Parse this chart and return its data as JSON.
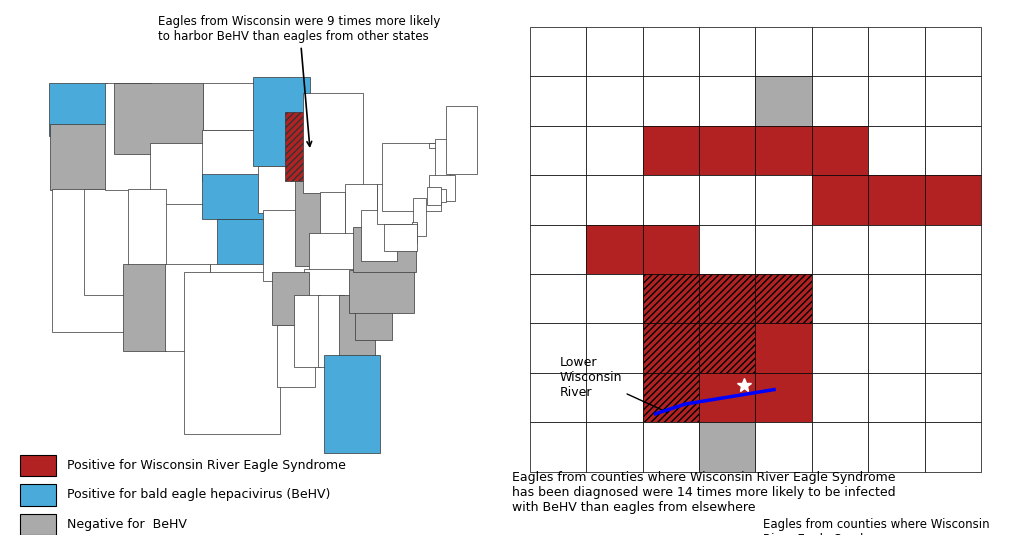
{
  "title_left": "Eagles from Wisconsin were 9 times more likely\nto harbor BeHV than eagles from other states",
  "title_right_top": "Lower\nWisconsin\nRiver",
  "title_right_bottom": "Eagles from counties where Wisconsin River Eagle Syndrome\nhas been diagnosed were 14 times more likely to be infected\nwith BeHV than eagles from elsewhere",
  "legend_items": [
    {
      "label": "Positive for Wisconsin River Eagle Syndrome",
      "color": "#B22222"
    },
    {
      "label": "Positive for bald eagle hepacivirus (BeHV)",
      "color": "#4AABDB"
    },
    {
      "label": "Negative for  BeHV",
      "color": "#AAAAAA"
    }
  ],
  "us_behv_positive": [
    "Washington",
    "Minnesota",
    "Nebraska",
    "Kansas",
    "Florida"
  ],
  "us_negative": [
    "Oregon",
    "Montana",
    "Arizona",
    "Illinois",
    "Arkansas",
    "Virginia",
    "North Carolina",
    "South Carolina",
    "Georgia"
  ],
  "us_both": [
    "Wisconsin"
  ],
  "background_color": "#FFFFFF",
  "map_edge_color": "#333333",
  "behv_color": "#4AABDB",
  "wres_color": "#B22222",
  "negative_color": "#AAAAAA",
  "default_color": "#FFFFFF"
}
